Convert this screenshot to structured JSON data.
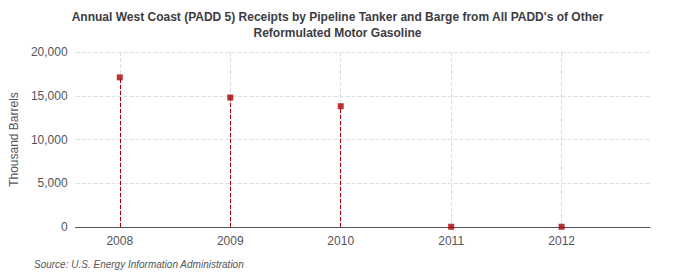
{
  "chart_data": {
    "type": "scatter",
    "title": "Annual West Coast (PADD 5) Receipts by Pipeline Tanker and Barge from All PADD's of Other\nReformulated Motor Gasoline",
    "ylabel": "Thousand Barrels",
    "annotations": [
      "Source: U.S. Energy Information Administration"
    ],
    "x": [
      2008,
      2009,
      2010,
      2011,
      2012
    ],
    "values": [
      17100,
      14800,
      13800,
      30,
      30
    ],
    "color": "#aa0000",
    "marker": "square",
    "line_style": "dashed",
    "xlim": [
      2007.6,
      2012.8
    ],
    "xticks": [
      2008,
      2009,
      2010,
      2011,
      2012
    ],
    "ylim": [
      0,
      20000
    ],
    "yticks": [
      0,
      {
        "value": 5000,
        "label": "5,000"
      },
      {
        "value": 10000,
        "label": "10,000"
      },
      {
        "value": 15000,
        "label": "15,000"
      },
      {
        "value": 20000,
        "label": "20,000"
      }
    ],
    "grid": true
  }
}
